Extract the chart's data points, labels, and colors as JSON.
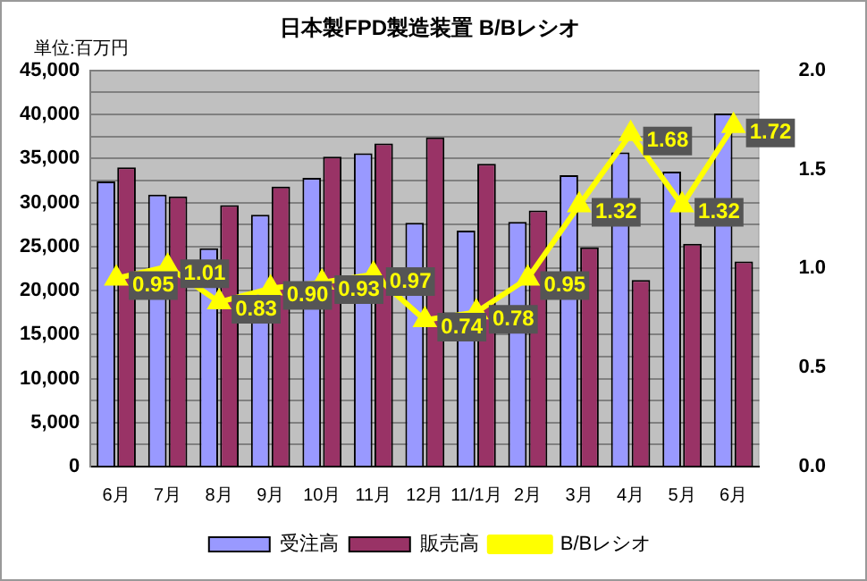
{
  "chart_data": {
    "type": "bar",
    "title": "日本製FPD製造装置 B/Bレシオ",
    "ylabel": "単位:百万円",
    "categories": [
      "6月",
      "7月",
      "8月",
      "9月",
      "10月",
      "11月",
      "12月",
      "11/1月",
      "2月",
      "3月",
      "4月",
      "5月",
      "6月"
    ],
    "series": [
      {
        "name": "受注高",
        "color": "#9999ff",
        "values": [
          32400,
          30900,
          24800,
          28600,
          32800,
          35600,
          27700,
          26800,
          27800,
          33100,
          35700,
          33500,
          40100
        ]
      },
      {
        "name": "販売高",
        "color": "#993366",
        "values": [
          34000,
          30700,
          29700,
          31800,
          35200,
          36700,
          37400,
          34400,
          29100,
          24900,
          21200,
          25300,
          23300
        ]
      },
      {
        "name": "B/Bレシオ",
        "type": "line",
        "axis": "y2",
        "color": "#ffff00",
        "marker": "triangle",
        "values": [
          0.95,
          1.01,
          0.83,
          0.9,
          0.93,
          0.97,
          0.74,
          0.78,
          0.95,
          1.32,
          1.68,
          1.32,
          1.72
        ],
        "value_labels": [
          "0.95",
          "1.01",
          "0.83",
          "0.90",
          "0.93",
          "0.97",
          "0.74",
          "0.78",
          "0.95",
          "1.32",
          "1.68",
          "1.32",
          "1.72"
        ]
      }
    ],
    "ylim": [
      0,
      45000
    ],
    "yticks": [
      0,
      {
        "value": 2500,
        "label": null
      },
      {
        "value": 5000,
        "label": "5,000"
      },
      {
        "value": 7500,
        "label": null
      },
      {
        "value": 10000,
        "label": "10,000"
      },
      {
        "value": 12500,
        "label": null
      },
      {
        "value": 15000,
        "label": "15,000"
      },
      {
        "value": 17500,
        "label": null
      },
      {
        "value": 20000,
        "label": "20,000"
      },
      {
        "value": 22500,
        "label": null
      },
      {
        "value": 25000,
        "label": "25,000"
      },
      {
        "value": 27500,
        "label": null
      },
      {
        "value": 30000,
        "label": "30,000"
      },
      {
        "value": 32500,
        "label": null
      },
      {
        "value": 35000,
        "label": "35,000"
      },
      {
        "value": 37500,
        "label": null
      },
      {
        "value": 40000,
        "label": "40,000"
      },
      {
        "value": 42500,
        "label": null
      },
      {
        "value": 45000,
        "label": "45,000"
      }
    ],
    "y2lim": [
      0,
      2
    ],
    "y2ticks": [
      {
        "value": 0,
        "label": "0.0"
      },
      0.5,
      {
        "value": 1,
        "label": "1.0"
      },
      1.5,
      {
        "value": 2,
        "label": "2.0"
      }
    ],
    "grid": "y",
    "legend": "bottom"
  }
}
